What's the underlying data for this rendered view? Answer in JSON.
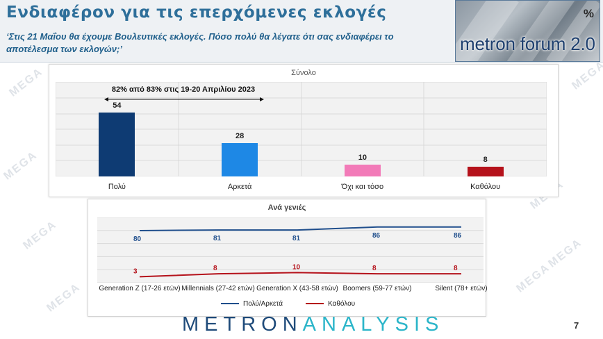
{
  "header": {
    "title": "Ενδιαφέρον για τις επερχόμενες εκλογές",
    "subtitle": "‘Στις 21 Μαΐου θα έχουμε Βουλευτικές εκλογές. Πόσο πολύ θα λέγατε ότι σας ενδιαφέρει το αποτέλεσμα των εκλογών;’"
  },
  "logo": {
    "text": "metron forum 2.0",
    "symbol": "%"
  },
  "brand": {
    "part1": "METRON",
    "part2": "ANALYSIS"
  },
  "page_number": "7",
  "watermark": "MEGA",
  "colors": {
    "title": "#2e6f9a",
    "bar_poly": "#0e3b73",
    "bar_arketa": "#1e88e5",
    "bar_oxi": "#f27ab8",
    "bar_katholou": "#b5121b",
    "line_poly": "#1f4e8c",
    "line_katholou": "#b5121b"
  },
  "chart_data": [
    {
      "type": "bar",
      "title": "Σύνολο",
      "categories": [
        "Πολύ",
        "Αρκετά",
        "Όχι και τόσο",
        "Καθόλου"
      ],
      "values": [
        54,
        28,
        10,
        8
      ],
      "annotation": "82% από 83% στις 19-20 Απριλίου 2023",
      "ylim": [
        0,
        60
      ],
      "grid": true
    },
    {
      "type": "line",
      "title": "Ανά γενιές",
      "categories": [
        "Generation Z (17-26 ετών)",
        "Millennials (27-42 ετών)",
        "Generation X (43-58 ετών)",
        "Boomers  (59-77 ετών)",
        "Silent  (78+ ετών)"
      ],
      "series": [
        {
          "name": "Πολύ/Αρκετά",
          "values": [
            80,
            81,
            81,
            86,
            86
          ]
        },
        {
          "name": "Καθόλου",
          "values": [
            3,
            8,
            10,
            8,
            8
          ]
        }
      ],
      "ylim": [
        0,
        95
      ],
      "legend": "bottom",
      "grid": true
    }
  ]
}
